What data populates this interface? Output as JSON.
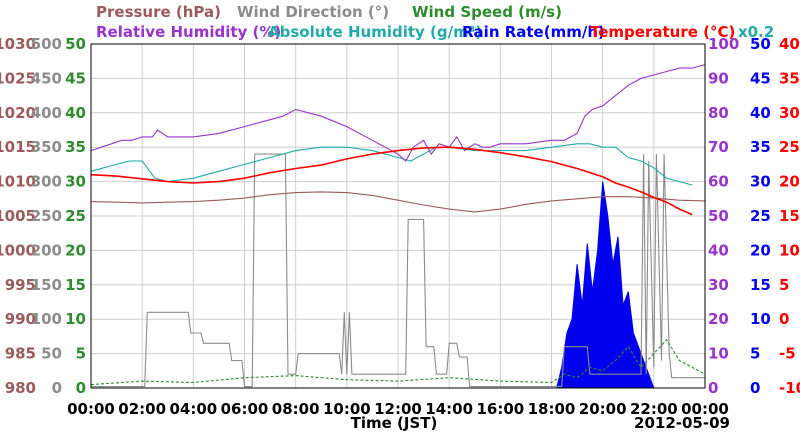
{
  "chart_data": {
    "type": "line",
    "date": "2012-05-09",
    "xlabel": "Time (JST)",
    "x_ticks": [
      "00:00",
      "02:00",
      "04:00",
      "06:00",
      "08:00",
      "10:00",
      "12:00",
      "14:00",
      "16:00",
      "18:00",
      "20:00",
      "22:00",
      "00:00"
    ],
    "grid": true,
    "legend": [
      {
        "key": "pressure",
        "label": "Pressure (hPa)",
        "color": "#9c5a5a"
      },
      {
        "key": "wind_direction",
        "label": "Wind Direction (°)",
        "color": "#8c8c8c"
      },
      {
        "key": "wind_speed",
        "label": "Wind Speed (m/s)",
        "color": "#2e8b2e"
      },
      {
        "key": "relative_humidity",
        "label": "Relative Humidity (%)",
        "color": "#9933cc"
      },
      {
        "key": "absolute_humidity",
        "label": "Absolute Humidity (g/m³)",
        "color": "#22aaaa"
      },
      {
        "key": "absolute_humidity_factor",
        "label": "x0.2",
        "color": "#22aaaa"
      },
      {
        "key": "rain_rate",
        "label": "Rain Rate(mm/h)",
        "color": "#0000ee"
      },
      {
        "key": "temperature",
        "label": "Temperature (°C)",
        "color": "#ff0000"
      }
    ],
    "axes": {
      "pressure": {
        "ticks": [
          "980",
          "985",
          "990",
          "995",
          "1000",
          "1005",
          "1010",
          "1015",
          "1020",
          "1025",
          "1030"
        ],
        "ylim": [
          980,
          1030
        ],
        "color": "#9c5a5a"
      },
      "wind_direction": {
        "ticks": [
          "0",
          "50",
          "100",
          "150",
          "200",
          "250",
          "300",
          "350",
          "400",
          "450",
          "500"
        ],
        "ylim": [
          0,
          500
        ],
        "color": "#8c8c8c"
      },
      "wind_speed": {
        "ticks": [
          "0",
          "5",
          "10",
          "15",
          "20",
          "25",
          "30",
          "35",
          "40",
          "45",
          "50"
        ],
        "ylim": [
          0,
          50
        ],
        "color": "#2e8b2e"
      },
      "relative_humidity": {
        "ticks": [
          "0",
          "10",
          "20",
          "30",
          "40",
          "50",
          "60",
          "70",
          "80",
          "90",
          "100"
        ],
        "ylim": [
          0,
          100
        ],
        "color": "#9933cc"
      },
      "rain_rate": {
        "ticks": [
          "0",
          "5",
          "10",
          "15",
          "20",
          "25",
          "30",
          "35",
          "40",
          "45",
          "50"
        ],
        "ylim": [
          0,
          50
        ],
        "color": "#0000ee"
      },
      "temperature": {
        "ticks": [
          "-10",
          "-5",
          "0",
          "5",
          "10",
          "15",
          "20",
          "25",
          "30",
          "35",
          "40"
        ],
        "ylim": [
          -10,
          40
        ],
        "color": "#ff0000"
      }
    },
    "series": [
      {
        "key": "pressure",
        "color": "#9c5a5a",
        "x": [
          0,
          1,
          2,
          3,
          4,
          5,
          6,
          7,
          8,
          9,
          10,
          11,
          12,
          13,
          14,
          15,
          16,
          17,
          18,
          19,
          20,
          21,
          22,
          23,
          24
        ],
        "values": [
          1007.1,
          1007.0,
          1006.9,
          1007.0,
          1007.1,
          1007.3,
          1007.6,
          1008.1,
          1008.4,
          1008.5,
          1008.4,
          1008.0,
          1007.3,
          1006.6,
          1006.0,
          1005.6,
          1006.0,
          1006.7,
          1007.2,
          1007.5,
          1007.8,
          1007.8,
          1007.6,
          1007.3,
          1007.2
        ]
      },
      {
        "key": "wind_direction",
        "color": "#8c8c8c",
        "x": [
          0,
          2.1,
          2.2,
          3.8,
          3.9,
          4.3,
          4.4,
          5.4,
          5.5,
          5.9,
          6.0,
          6.3,
          6.4,
          7.6,
          7.7,
          8.0,
          8.1,
          9.7,
          9.8,
          9.9,
          10.0,
          10.1,
          10.2,
          12.3,
          12.4,
          13.0,
          13.1,
          13.4,
          13.5,
          13.9,
          14.0,
          14.3,
          14.4,
          14.7,
          14.8,
          18.4,
          18.5,
          19.4,
          19.5,
          21.5,
          21.6,
          21.7,
          21.8,
          22.0,
          22.1,
          22.3,
          22.4,
          22.6,
          22.7,
          24.0
        ],
        "values": [
          2,
          2,
          110,
          110,
          80,
          80,
          65,
          65,
          40,
          40,
          2,
          2,
          340,
          340,
          20,
          20,
          50,
          50,
          20,
          110,
          20,
          110,
          20,
          20,
          245,
          245,
          60,
          60,
          20,
          20,
          65,
          65,
          45,
          45,
          2,
          2,
          60,
          60,
          20,
          20,
          340,
          20,
          330,
          30,
          340,
          40,
          340,
          50,
          15,
          15
        ]
      },
      {
        "key": "wind_speed",
        "color": "#2e8b2e",
        "x": [
          0,
          2,
          4,
          6,
          8,
          10,
          12,
          14,
          16,
          18,
          18.5,
          19,
          19.5,
          20,
          20.5,
          21,
          21.5,
          22,
          22.5,
          23,
          23.5,
          24
        ],
        "values": [
          0.5,
          1,
          0.8,
          1.5,
          1.8,
          1.2,
          1,
          1.5,
          1,
          0.8,
          2,
          1.5,
          3,
          2.5,
          4,
          6,
          3,
          5,
          7,
          4,
          3,
          2
        ]
      },
      {
        "key": "relative_humidity",
        "color": "#9933cc",
        "x": [
          0,
          0.4,
          0.8,
          1.2,
          1.6,
          2,
          2.4,
          2.6,
          3,
          4,
          5,
          6,
          6.5,
          7,
          7.5,
          8,
          8.5,
          9,
          10,
          11,
          11.5,
          12,
          12.3,
          12.6,
          13,
          13.3,
          13.6,
          14,
          14.3,
          14.6,
          15,
          15.3,
          15.6,
          16,
          17,
          18,
          18.5,
          19,
          19.3,
          19.6,
          20,
          20.5,
          21,
          21.5,
          22,
          22.5,
          23,
          23.5,
          24
        ],
        "values": [
          69,
          70,
          71,
          72,
          72,
          73,
          73,
          75,
          73,
          73,
          74,
          76,
          77,
          78,
          79,
          81,
          80,
          79,
          76,
          72,
          70,
          68,
          66,
          70,
          72,
          68,
          71,
          70,
          73,
          69,
          71,
          70,
          70,
          71,
          71,
          72,
          72,
          74,
          79,
          81,
          82,
          85,
          88,
          90,
          91,
          92,
          93,
          93,
          94
        ]
      },
      {
        "key": "absolute_humidity",
        "color": "#22aaaa",
        "x": [
          0,
          0.5,
          1,
          1.5,
          2,
          2.5,
          3,
          4,
          5,
          6,
          7,
          8,
          9,
          10,
          11,
          12,
          12.5,
          13,
          13.5,
          14,
          15,
          16,
          17,
          18,
          19,
          19.5,
          20,
          20.5,
          21,
          21.5,
          22,
          22.5,
          23,
          23.5
        ],
        "values": [
          63,
          64,
          65,
          66,
          66,
          61,
          60,
          61,
          63,
          65,
          67,
          69,
          70,
          70,
          69,
          67,
          66,
          68,
          70,
          70,
          69,
          69,
          69,
          70,
          71,
          71,
          70,
          70,
          67,
          66,
          64,
          61,
          60,
          59
        ]
      },
      {
        "key": "temperature",
        "color": "#ff0000",
        "x": [
          0,
          1,
          2,
          3,
          4,
          5,
          6,
          7,
          8,
          9,
          10,
          11,
          12,
          13,
          14,
          15,
          16,
          17,
          18,
          19,
          20,
          20.5,
          21,
          21.5,
          22,
          22.5,
          23,
          23.5
        ],
        "values": [
          21.0,
          20.8,
          20.4,
          20.0,
          19.8,
          20.0,
          20.5,
          21.3,
          21.9,
          22.4,
          23.3,
          24.0,
          24.5,
          24.9,
          25.0,
          24.7,
          24.2,
          23.6,
          22.9,
          21.9,
          20.7,
          19.8,
          19.2,
          18.5,
          17.7,
          17.0,
          16.0,
          15.2
        ]
      },
      {
        "key": "rain_rate",
        "color": "#0000ee",
        "x": [
          18.2,
          18.4,
          18.6,
          18.8,
          19.0,
          19.2,
          19.4,
          19.6,
          19.8,
          20.0,
          20.2,
          20.4,
          20.6,
          20.8,
          21.0,
          21.2,
          21.4,
          21.6,
          21.8,
          22.0
        ],
        "values": [
          0,
          3,
          8,
          10,
          18,
          12,
          21,
          14,
          20,
          30,
          25,
          18,
          22,
          12,
          14,
          8,
          6,
          4,
          2,
          0
        ]
      }
    ]
  }
}
